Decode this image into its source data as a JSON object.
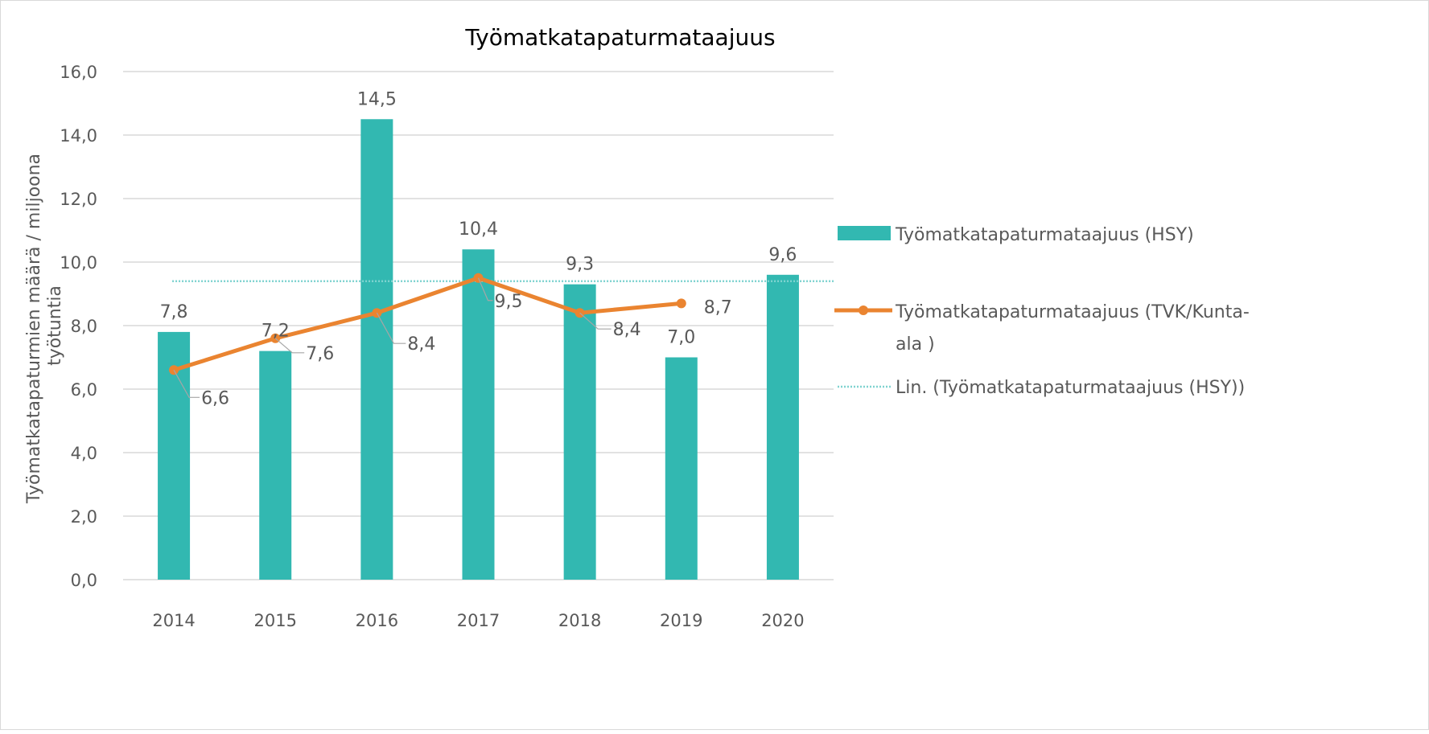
{
  "chart_data": {
    "type": "bar",
    "title": "Työmatkatapaturmataajuus",
    "xlabel": "",
    "ylabel": "Työmatkatapaturmien määrä / miljoona työtuntia",
    "ylim": [
      0,
      16
    ],
    "yticks": [
      "0,0",
      "2,0",
      "4,0",
      "6,0",
      "8,0",
      "10,0",
      "12,0",
      "14,0",
      "16,0"
    ],
    "grid": true,
    "legend_position": "right",
    "categories": [
      "2014",
      "2015",
      "2016",
      "2017",
      "2018",
      "2019",
      "2020"
    ],
    "series": [
      {
        "name": "Työmatkatapaturmataajuus (HSY)",
        "type": "bar",
        "color": "#32b8b1",
        "values": [
          7.8,
          7.2,
          14.5,
          10.4,
          9.3,
          7.0,
          9.6
        ],
        "labels": [
          "7,8",
          "7,2",
          "14,5",
          "10,4",
          "9,3",
          "7,0",
          "9,6"
        ]
      },
      {
        "name": "Työmatkatapaturmataajuus (TVK/Kunta-ala )",
        "type": "line",
        "color": "#ea8430",
        "values": [
          6.6,
          7.6,
          8.4,
          9.5,
          8.4,
          8.7,
          null
        ],
        "labels": [
          "6,6",
          "7,6",
          "8,4",
          "9,5",
          "8,4",
          "8,7",
          ""
        ]
      },
      {
        "name": "Lin. (Työmatkatapaturmataajuus (HSY))",
        "type": "trendline",
        "color": "#7fd3d0",
        "values": [
          9.4,
          9.4,
          9.4,
          9.4,
          9.4,
          9.4,
          9.4
        ]
      }
    ]
  }
}
